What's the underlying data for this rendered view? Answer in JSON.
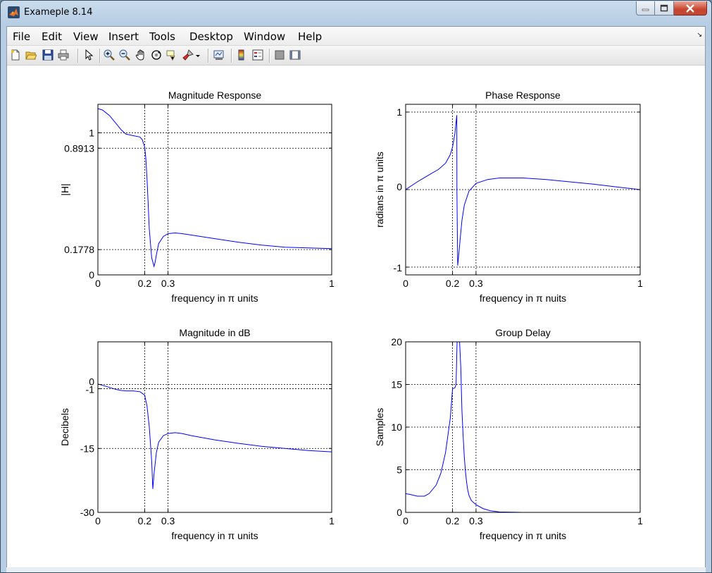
{
  "window": {
    "title": "Exameple 8.14",
    "menu": [
      "File",
      "Edit",
      "View",
      "Insert",
      "Tools",
      "Desktop",
      "Window",
      "Help"
    ]
  },
  "toolbar_icons": [
    "new-figure-icon",
    "open-file-icon",
    "save-icon",
    "print-icon",
    "pointer-icon",
    "zoom-in-icon",
    "zoom-out-icon",
    "pan-hand-icon",
    "rotate-3d-icon",
    "data-cursor-icon",
    "brush-icon",
    "brush-dropdown-icon",
    "link-plot-icon",
    "colorbar-icon",
    "legend-icon",
    "hide-plot-tools-icon",
    "show-plot-tools-icon"
  ],
  "chart_data": [
    {
      "type": "line",
      "title": "Magnitude Response",
      "xlabel": "frequency in π units",
      "ylabel": "|H|",
      "xlim": [
        0,
        1
      ],
      "ylim": [
        0,
        1.2
      ],
      "xticks": [
        0,
        0.2,
        0.3,
        1
      ],
      "xtick_labels": [
        "0",
        "0.2",
        "0.3",
        "1"
      ],
      "yticks": [
        0,
        0.1778,
        0.8913,
        1
      ],
      "ytick_labels": [
        "0",
        "0.1778",
        "0.8913",
        "1"
      ],
      "grid": "dashed lines at tick positions",
      "series": [
        {
          "color": "#0000ff",
          "x": [
            0,
            0.02,
            0.05,
            0.08,
            0.1,
            0.12,
            0.15,
            0.18,
            0.19,
            0.2,
            0.205,
            0.21,
            0.215,
            0.22,
            0.23,
            0.24,
            0.245,
            0.25,
            0.26,
            0.28,
            0.3,
            0.33,
            0.36,
            0.4,
            0.5,
            0.6,
            0.7,
            0.8,
            0.9,
            1.0
          ],
          "y": [
            1.17,
            1.16,
            1.12,
            1.06,
            1.02,
            0.99,
            0.98,
            0.97,
            0.95,
            0.9,
            0.82,
            0.68,
            0.5,
            0.32,
            0.12,
            0.06,
            0.09,
            0.14,
            0.22,
            0.27,
            0.29,
            0.295,
            0.29,
            0.28,
            0.255,
            0.23,
            0.21,
            0.195,
            0.19,
            0.185
          ]
        }
      ]
    },
    {
      "type": "line",
      "title": "Phase Response",
      "xlabel": "frequency in π nuits",
      "ylabel": "radians in π units",
      "xlim": [
        0,
        1
      ],
      "ylim": [
        -1.1,
        1.1
      ],
      "xticks": [
        0,
        0.2,
        0.3,
        1
      ],
      "xtick_labels": [
        "0",
        "0.2",
        "0.3",
        "1"
      ],
      "yticks": [
        -1,
        0,
        1
      ],
      "ytick_labels": [
        "-1",
        "0",
        "1"
      ],
      "grid": "dashed lines at tick positions",
      "series": [
        {
          "color": "#0000ff",
          "x": [
            0,
            0.05,
            0.1,
            0.14,
            0.17,
            0.19,
            0.2,
            0.21,
            0.218,
            0.2185,
            0.222,
            0.226,
            0.232,
            0.24,
            0.25,
            0.27,
            0.3,
            0.35,
            0.4,
            0.5,
            0.6,
            0.7,
            0.8,
            0.9,
            1.0
          ],
          "y": [
            0,
            0.1,
            0.19,
            0.26,
            0.34,
            0.45,
            0.55,
            0.72,
            0.96,
            -0.02,
            -0.98,
            -0.85,
            -0.65,
            -0.4,
            -0.2,
            -0.02,
            0.08,
            0.13,
            0.15,
            0.15,
            0.13,
            0.1,
            0.07,
            0.035,
            0
          ]
        }
      ]
    },
    {
      "type": "line",
      "title": "Magnitude in dB",
      "xlabel": "frequency in π units",
      "ylabel": "Decibels",
      "xlim": [
        0,
        1
      ],
      "ylim": [
        -30,
        10
      ],
      "xticks": [
        0,
        0.2,
        0.3,
        1
      ],
      "xtick_labels": [
        "0",
        "0.2",
        "0.3",
        "1"
      ],
      "yticks": [
        -30,
        -15,
        -1,
        0
      ],
      "ytick_labels": [
        "-30",
        "-15",
        "-1",
        "0"
      ],
      "grid": "dashed lines at tick positions",
      "series": [
        {
          "color": "#0000ff",
          "x": [
            0,
            0.02,
            0.05,
            0.08,
            0.1,
            0.12,
            0.15,
            0.18,
            0.2,
            0.21,
            0.22,
            0.23,
            0.235,
            0.24,
            0.25,
            0.26,
            0.28,
            0.3,
            0.33,
            0.36,
            0.4,
            0.5,
            0.6,
            0.7,
            0.8,
            0.9,
            1.0
          ],
          "y": [
            0.1,
            -0.2,
            -0.7,
            -1.2,
            -1.4,
            -1.5,
            -1.5,
            -1.7,
            -2.5,
            -5,
            -10,
            -18,
            -24.5,
            -21,
            -16,
            -13.5,
            -12,
            -11.5,
            -11.3,
            -11.5,
            -12,
            -13,
            -13.8,
            -14.5,
            -15,
            -15.5,
            -15.8
          ]
        }
      ]
    },
    {
      "type": "line",
      "title": "Group Delay",
      "xlabel": "frequency in π units",
      "ylabel": "Samples",
      "xlim": [
        0,
        1
      ],
      "ylim": [
        0,
        20
      ],
      "xticks": [
        0,
        0.2,
        0.3,
        1
      ],
      "xtick_labels": [
        "0",
        "0.2",
        "0.3",
        "1"
      ],
      "yticks": [
        0,
        5,
        10,
        15,
        20
      ],
      "ytick_labels": [
        "0",
        "5",
        "10",
        "15",
        "20"
      ],
      "grid": "dashed lines at tick positions",
      "series": [
        {
          "color": "#0000ff",
          "x": [
            0,
            0.02,
            0.05,
            0.08,
            0.1,
            0.13,
            0.15,
            0.17,
            0.19,
            0.2,
            0.21,
            0.215,
            0.22,
            0.225,
            0.23,
            0.235,
            0.24,
            0.245,
            0.25,
            0.255,
            0.26,
            0.265,
            0.27,
            0.28,
            0.3,
            0.33,
            0.36,
            0.4,
            0.5,
            1.0
          ],
          "y": [
            2.2,
            2.1,
            1.9,
            1.9,
            2.2,
            3.2,
            4.6,
            7,
            11,
            14.5,
            14.6,
            15,
            21,
            21,
            20,
            17,
            12,
            9,
            6.5,
            4.8,
            3.5,
            2.6,
            2,
            1.4,
            0.9,
            0.45,
            0.2,
            0.05,
            0,
            0
          ]
        }
      ]
    }
  ]
}
